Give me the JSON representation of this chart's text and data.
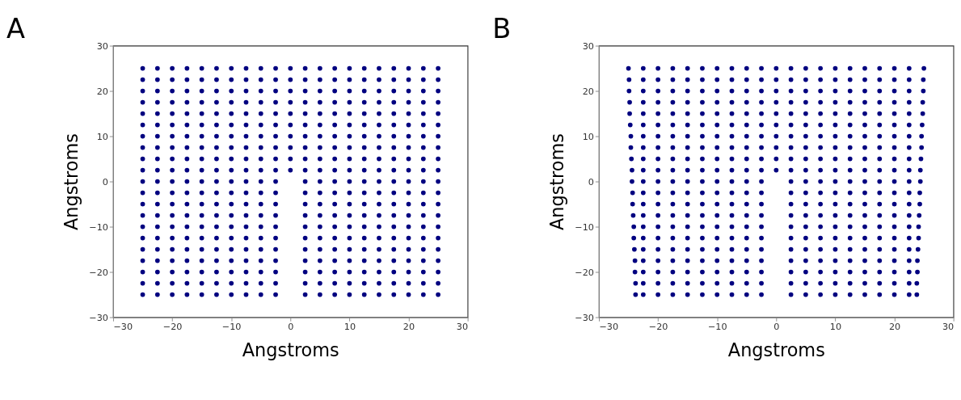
{
  "chart_data": [
    {
      "type": "scatter",
      "title": "A",
      "xlabel": "Angstroms",
      "ylabel": "Angstroms",
      "xlim": [
        -30,
        30
      ],
      "ylim": [
        -30,
        30
      ],
      "xticks": [
        -30,
        -20,
        -10,
        0,
        10,
        20,
        30
      ],
      "yticks": [
        -30,
        -20,
        -10,
        0,
        10,
        20,
        30
      ],
      "grid": false,
      "marker": "circle",
      "series": [
        {
          "color": "#000080",
          "x": [
            -25,
            -22.5,
            -20,
            -17.5,
            -15,
            -12.5,
            -10,
            -7.5,
            -5,
            -2.5,
            0,
            2.5,
            5,
            7.5,
            10,
            12.5,
            15,
            17.5,
            20,
            22.5,
            25
          ],
          "values": [
            25,
            25,
            25,
            25,
            25,
            25,
            25,
            25,
            25,
            25,
            25,
            25,
            25,
            25,
            25,
            25,
            25,
            25,
            25,
            25,
            25
          ]
        },
        {
          "color": "#000080",
          "x": [
            -25,
            -22.5,
            -20,
            -17.5,
            -15,
            -12.5,
            -10,
            -7.5,
            -5,
            -2.5,
            0,
            2.5,
            5,
            7.5,
            10,
            12.5,
            15,
            17.5,
            20,
            22.5,
            25
          ],
          "values": [
            22.5,
            22.5,
            22.5,
            22.5,
            22.5,
            22.5,
            22.5,
            22.5,
            22.5,
            22.5,
            22.5,
            22.5,
            22.5,
            22.5,
            22.5,
            22.5,
            22.5,
            22.5,
            22.5,
            22.5,
            22.5
          ]
        },
        {
          "color": "#000080",
          "x": [
            -25,
            -22.5,
            -20,
            -17.5,
            -15,
            -12.5,
            -10,
            -7.5,
            -5,
            -2.5,
            0,
            2.5,
            5,
            7.5,
            10,
            12.5,
            15,
            17.5,
            20,
            22.5,
            25
          ],
          "values": [
            20,
            20,
            20,
            20,
            20,
            20,
            20,
            20,
            20,
            20,
            20,
            20,
            20,
            20,
            20,
            20,
            20,
            20,
            20,
            20,
            20
          ]
        },
        {
          "color": "#000080",
          "x": [
            -25,
            -22.5,
            -20,
            -17.5,
            -15,
            -12.5,
            -10,
            -7.5,
            -5,
            -2.5,
            0,
            2.5,
            5,
            7.5,
            10,
            12.5,
            15,
            17.5,
            20,
            22.5,
            25
          ],
          "values": [
            17.5,
            17.5,
            17.5,
            17.5,
            17.5,
            17.5,
            17.5,
            17.5,
            17.5,
            17.5,
            17.5,
            17.5,
            17.5,
            17.5,
            17.5,
            17.5,
            17.5,
            17.5,
            17.5,
            17.5,
            17.5
          ]
        },
        {
          "color": "#000080",
          "x": [
            -25,
            -22.5,
            -20,
            -17.5,
            -15,
            -12.5,
            -10,
            -7.5,
            -5,
            -2.5,
            0,
            2.5,
            5,
            7.5,
            10,
            12.5,
            15,
            17.5,
            20,
            22.5,
            25
          ],
          "values": [
            15,
            15,
            15,
            15,
            15,
            15,
            15,
            15,
            15,
            15,
            15,
            15,
            15,
            15,
            15,
            15,
            15,
            15,
            15,
            15,
            15
          ]
        },
        {
          "color": "#000080",
          "x": [
            -25,
            -22.5,
            -20,
            -17.5,
            -15,
            -12.5,
            -10,
            -7.5,
            -5,
            -2.5,
            0,
            2.5,
            5,
            7.5,
            10,
            12.5,
            15,
            17.5,
            20,
            22.5,
            25
          ],
          "values": [
            12.5,
            12.5,
            12.5,
            12.5,
            12.5,
            12.5,
            12.5,
            12.5,
            12.5,
            12.5,
            12.5,
            12.5,
            12.5,
            12.5,
            12.5,
            12.5,
            12.5,
            12.5,
            12.5,
            12.5,
            12.5
          ]
        },
        {
          "color": "#000080",
          "x": [
            -25,
            -22.5,
            -20,
            -17.5,
            -15,
            -12.5,
            -10,
            -7.5,
            -5,
            -2.5,
            0,
            2.5,
            5,
            7.5,
            10,
            12.5,
            15,
            17.5,
            20,
            22.5,
            25
          ],
          "values": [
            10,
            10,
            10,
            10,
            10,
            10,
            10,
            10,
            10,
            10,
            10,
            10,
            10,
            10,
            10,
            10,
            10,
            10,
            10,
            10,
            10
          ]
        },
        {
          "color": "#000080",
          "x": [
            -25,
            -22.5,
            -20,
            -17.5,
            -15,
            -12.5,
            -10,
            -7.5,
            -5,
            -2.5,
            0,
            2.5,
            5,
            7.5,
            10,
            12.5,
            15,
            17.5,
            20,
            22.5,
            25
          ],
          "values": [
            7.5,
            7.5,
            7.5,
            7.5,
            7.5,
            7.5,
            7.5,
            7.5,
            7.5,
            7.5,
            7.5,
            7.5,
            7.5,
            7.5,
            7.5,
            7.5,
            7.5,
            7.5,
            7.5,
            7.5,
            7.5
          ]
        },
        {
          "color": "#000080",
          "x": [
            -25,
            -22.5,
            -20,
            -17.5,
            -15,
            -12.5,
            -10,
            -7.5,
            -5,
            -2.5,
            0,
            2.5,
            5,
            7.5,
            10,
            12.5,
            15,
            17.5,
            20,
            22.5,
            25
          ],
          "values": [
            5,
            5,
            5,
            5,
            5,
            5,
            5,
            5,
            5,
            5,
            5,
            5,
            5,
            5,
            5,
            5,
            5,
            5,
            5,
            5,
            5
          ]
        },
        {
          "color": "#000080",
          "x": [
            -25,
            -22.5,
            -20,
            -17.5,
            -15,
            -12.5,
            -10,
            -7.5,
            -5,
            -2.5,
            0,
            2.5,
            5,
            7.5,
            10,
            12.5,
            15,
            17.5,
            20,
            22.5,
            25
          ],
          "values": [
            2.5,
            2.5,
            2.5,
            2.5,
            2.5,
            2.5,
            2.5,
            2.5,
            2.5,
            2.5,
            2.5,
            2.5,
            2.5,
            2.5,
            2.5,
            2.5,
            2.5,
            2.5,
            2.5,
            2.5,
            2.5
          ]
        },
        {
          "color": "#000080",
          "x": [
            -25,
            -22.5,
            -20,
            -17.5,
            -15,
            -12.5,
            -10,
            -7.5,
            -5,
            -2.5,
            2.5,
            5,
            7.5,
            10,
            12.5,
            15,
            17.5,
            20,
            22.5,
            25
          ],
          "values": [
            0,
            0,
            0,
            0,
            0,
            0,
            0,
            0,
            0,
            0,
            0,
            0,
            0,
            0,
            0,
            0,
            0,
            0,
            0,
            0
          ]
        },
        {
          "color": "#000080",
          "x": [
            -25,
            -22.5,
            -20,
            -17.5,
            -15,
            -12.5,
            -10,
            -7.5,
            -5,
            -2.5,
            2.5,
            5,
            7.5,
            10,
            12.5,
            15,
            17.5,
            20,
            22.5,
            25
          ],
          "values": [
            -2.5,
            -2.5,
            -2.5,
            -2.5,
            -2.5,
            -2.5,
            -2.5,
            -2.5,
            -2.5,
            -2.5,
            -2.5,
            -2.5,
            -2.5,
            -2.5,
            -2.5,
            -2.5,
            -2.5,
            -2.5,
            -2.5,
            -2.5
          ]
        },
        {
          "color": "#000080",
          "x": [
            -25,
            -22.5,
            -20,
            -17.5,
            -15,
            -12.5,
            -10,
            -7.5,
            -5,
            -2.5,
            2.5,
            5,
            7.5,
            10,
            12.5,
            15,
            17.5,
            20,
            22.5,
            25
          ],
          "values": [
            -5,
            -5,
            -5,
            -5,
            -5,
            -5,
            -5,
            -5,
            -5,
            -5,
            -5,
            -5,
            -5,
            -5,
            -5,
            -5,
            -5,
            -5,
            -5,
            -5
          ]
        },
        {
          "color": "#000080",
          "x": [
            -25,
            -22.5,
            -20,
            -17.5,
            -15,
            -12.5,
            -10,
            -7.5,
            -5,
            -2.5,
            2.5,
            5,
            7.5,
            10,
            12.5,
            15,
            17.5,
            20,
            22.5,
            25
          ],
          "values": [
            -7.5,
            -7.5,
            -7.5,
            -7.5,
            -7.5,
            -7.5,
            -7.5,
            -7.5,
            -7.5,
            -7.5,
            -7.5,
            -7.5,
            -7.5,
            -7.5,
            -7.5,
            -7.5,
            -7.5,
            -7.5,
            -7.5,
            -7.5
          ]
        },
        {
          "color": "#000080",
          "x": [
            -25,
            -22.5,
            -20,
            -17.5,
            -15,
            -12.5,
            -10,
            -7.5,
            -5,
            -2.5,
            2.5,
            5,
            7.5,
            10,
            12.5,
            15,
            17.5,
            20,
            22.5,
            25
          ],
          "values": [
            -10,
            -10,
            -10,
            -10,
            -10,
            -10,
            -10,
            -10,
            -10,
            -10,
            -10,
            -10,
            -10,
            -10,
            -10,
            -10,
            -10,
            -10,
            -10,
            -10
          ]
        },
        {
          "color": "#000080",
          "x": [
            -25,
            -22.5,
            -20,
            -17.5,
            -15,
            -12.5,
            -10,
            -7.5,
            -5,
            -2.5,
            2.5,
            5,
            7.5,
            10,
            12.5,
            15,
            17.5,
            20,
            22.5,
            25
          ],
          "values": [
            -12.5,
            -12.5,
            -12.5,
            -12.5,
            -12.5,
            -12.5,
            -12.5,
            -12.5,
            -12.5,
            -12.5,
            -12.5,
            -12.5,
            -12.5,
            -12.5,
            -12.5,
            -12.5,
            -12.5,
            -12.5,
            -12.5,
            -12.5
          ]
        },
        {
          "color": "#000080",
          "x": [
            -25,
            -22.5,
            -20,
            -17.5,
            -15,
            -12.5,
            -10,
            -7.5,
            -5,
            -2.5,
            2.5,
            5,
            7.5,
            10,
            12.5,
            15,
            17.5,
            20,
            22.5,
            25
          ],
          "values": [
            -15,
            -15,
            -15,
            -15,
            -15,
            -15,
            -15,
            -15,
            -15,
            -15,
            -15,
            -15,
            -15,
            -15,
            -15,
            -15,
            -15,
            -15,
            -15,
            -15
          ]
        },
        {
          "color": "#000080",
          "x": [
            -25,
            -22.5,
            -20,
            -17.5,
            -15,
            -12.5,
            -10,
            -7.5,
            -5,
            -2.5,
            2.5,
            5,
            7.5,
            10,
            12.5,
            15,
            17.5,
            20,
            22.5,
            25
          ],
          "values": [
            -17.5,
            -17.5,
            -17.5,
            -17.5,
            -17.5,
            -17.5,
            -17.5,
            -17.5,
            -17.5,
            -17.5,
            -17.5,
            -17.5,
            -17.5,
            -17.5,
            -17.5,
            -17.5,
            -17.5,
            -17.5,
            -17.5,
            -17.5
          ]
        },
        {
          "color": "#000080",
          "x": [
            -25,
            -22.5,
            -20,
            -17.5,
            -15,
            -12.5,
            -10,
            -7.5,
            -5,
            -2.5,
            2.5,
            5,
            7.5,
            10,
            12.5,
            15,
            17.5,
            20,
            22.5,
            25
          ],
          "values": [
            -20,
            -20,
            -20,
            -20,
            -20,
            -20,
            -20,
            -20,
            -20,
            -20,
            -20,
            -20,
            -20,
            -20,
            -20,
            -20,
            -20,
            -20,
            -20,
            -20
          ]
        },
        {
          "color": "#000080",
          "x": [
            -25,
            -22.5,
            -20,
            -17.5,
            -15,
            -12.5,
            -10,
            -7.5,
            -5,
            -2.5,
            2.5,
            5,
            7.5,
            10,
            12.5,
            15,
            17.5,
            20,
            22.5,
            25
          ],
          "values": [
            -22.5,
            -22.5,
            -22.5,
            -22.5,
            -22.5,
            -22.5,
            -22.5,
            -22.5,
            -22.5,
            -22.5,
            -22.5,
            -22.5,
            -22.5,
            -22.5,
            -22.5,
            -22.5,
            -22.5,
            -22.5,
            -22.5,
            -22.5
          ]
        },
        {
          "color": "#000080",
          "x": [
            -25,
            -22.5,
            -20,
            -17.5,
            -15,
            -12.5,
            -10,
            -7.5,
            -5,
            -2.5,
            2.5,
            5,
            7.5,
            10,
            12.5,
            15,
            17.5,
            20,
            22.5,
            25
          ],
          "values": [
            -25,
            -25,
            -25,
            -25,
            -25,
            -25,
            -25,
            -25,
            -25,
            -25,
            -25,
            -25,
            -25,
            -25,
            -25,
            -25,
            -25,
            -25,
            -25,
            -25
          ]
        }
      ]
    },
    {
      "type": "scatter",
      "title": "B",
      "xlabel": "Angstroms",
      "ylabel": "Angstroms",
      "xlim": [
        -30,
        30
      ],
      "ylim": [
        -30,
        30
      ],
      "xticks": [
        -30,
        -20,
        -10,
        0,
        10,
        20,
        30
      ],
      "yticks": [
        -30,
        -20,
        -10,
        0,
        10,
        20,
        30
      ],
      "grid": false,
      "marker": "circle",
      "series": [
        {
          "color": "#000080",
          "x": [
            -25,
            -22.5,
            -20,
            -17.5,
            -15,
            -12.5,
            -10,
            -7.5,
            -5,
            -2.5,
            0,
            2.5,
            5,
            7.5,
            10,
            12.5,
            15,
            17.5,
            20,
            22.5,
            25
          ],
          "values": [
            25,
            25,
            25,
            25,
            25,
            25,
            25,
            25,
            25,
            25,
            25,
            25,
            25,
            25,
            25,
            25,
            25,
            25,
            25,
            25,
            25
          ]
        },
        {
          "color": "#000080",
          "x": [
            -24.9,
            -22.5,
            -20,
            -17.5,
            -15,
            -12.5,
            -10,
            -7.5,
            -5,
            -2.5,
            0,
            2.5,
            5,
            7.5,
            10,
            12.5,
            15,
            17.5,
            20,
            22.5,
            24.9
          ],
          "values": [
            22.5,
            22.5,
            22.5,
            22.5,
            22.5,
            22.5,
            22.5,
            22.5,
            22.5,
            22.5,
            22.5,
            22.5,
            22.5,
            22.5,
            22.5,
            22.5,
            22.5,
            22.5,
            22.5,
            22.5,
            22.5
          ]
        },
        {
          "color": "#000080",
          "x": [
            -24.9,
            -22.5,
            -20,
            -17.5,
            -15,
            -12.5,
            -10,
            -7.5,
            -5,
            -2.5,
            0,
            2.5,
            5,
            7.5,
            10,
            12.5,
            15,
            17.5,
            20,
            22.5,
            24.9
          ],
          "values": [
            20,
            20,
            20,
            20,
            20,
            20,
            20,
            20,
            20,
            20,
            20,
            20,
            20,
            20,
            20,
            20,
            20,
            20,
            20,
            20,
            20
          ]
        },
        {
          "color": "#000080",
          "x": [
            -24.8,
            -22.5,
            -20,
            -17.5,
            -15,
            -12.5,
            -10,
            -7.5,
            -5,
            -2.5,
            0,
            2.5,
            5,
            7.5,
            10,
            12.5,
            15,
            17.5,
            20,
            22.5,
            24.8
          ],
          "values": [
            17.5,
            17.5,
            17.5,
            17.5,
            17.5,
            17.5,
            17.5,
            17.5,
            17.5,
            17.5,
            17.5,
            17.5,
            17.5,
            17.5,
            17.5,
            17.5,
            17.5,
            17.5,
            17.5,
            17.5,
            17.5
          ]
        },
        {
          "color": "#000080",
          "x": [
            -24.8,
            -22.5,
            -20,
            -17.5,
            -15,
            -12.5,
            -10,
            -7.5,
            -5,
            -2.5,
            0,
            2.5,
            5,
            7.5,
            10,
            12.5,
            15,
            17.5,
            20,
            22.5,
            24.8
          ],
          "values": [
            15,
            15,
            15,
            15,
            15,
            15,
            15,
            15,
            15,
            15,
            15,
            15,
            15,
            15,
            15,
            15,
            15,
            15,
            15,
            15,
            15
          ]
        },
        {
          "color": "#000080",
          "x": [
            -24.7,
            -22.5,
            -20,
            -17.5,
            -15,
            -12.5,
            -10,
            -7.5,
            -5,
            -2.5,
            0,
            2.5,
            5,
            7.5,
            10,
            12.5,
            15,
            17.5,
            20,
            22.5,
            24.7
          ],
          "values": [
            12.5,
            12.5,
            12.5,
            12.5,
            12.5,
            12.5,
            12.5,
            12.5,
            12.5,
            12.5,
            12.5,
            12.5,
            12.5,
            12.5,
            12.5,
            12.5,
            12.5,
            12.5,
            12.5,
            12.5,
            12.5
          ]
        },
        {
          "color": "#000080",
          "x": [
            -24.6,
            -22.5,
            -20,
            -17.5,
            -15,
            -12.5,
            -10,
            -7.5,
            -5,
            -2.5,
            0,
            2.5,
            5,
            7.5,
            10,
            12.5,
            15,
            17.5,
            20,
            22.5,
            24.6
          ],
          "values": [
            10,
            10,
            10,
            10,
            10,
            10,
            10,
            10,
            10,
            10,
            10,
            10,
            10,
            10,
            10,
            10,
            10,
            10,
            10,
            10,
            10
          ]
        },
        {
          "color": "#000080",
          "x": [
            -24.6,
            -22.5,
            -20,
            -17.5,
            -15,
            -12.5,
            -10,
            -7.5,
            -5,
            -2.5,
            0,
            2.5,
            5,
            7.5,
            10,
            12.5,
            15,
            17.5,
            20,
            22.5,
            24.6
          ],
          "values": [
            7.5,
            7.5,
            7.5,
            7.5,
            7.5,
            7.5,
            7.5,
            7.5,
            7.5,
            7.5,
            7.5,
            7.5,
            7.5,
            7.5,
            7.5,
            7.5,
            7.5,
            7.5,
            7.5,
            7.5,
            7.5
          ]
        },
        {
          "color": "#000080",
          "x": [
            -24.5,
            -22.5,
            -20,
            -17.5,
            -15,
            -12.5,
            -10,
            -7.5,
            -5,
            -2.5,
            0,
            2.5,
            5,
            7.5,
            10,
            12.5,
            15,
            17.5,
            20,
            22.5,
            24.5
          ],
          "values": [
            5,
            5,
            5,
            5,
            5,
            5,
            5,
            5,
            5,
            5,
            5,
            5,
            5,
            5,
            5,
            5,
            5,
            5,
            5,
            5,
            5
          ]
        },
        {
          "color": "#000080",
          "x": [
            -24.4,
            -22.5,
            -20,
            -17.5,
            -15,
            -12.5,
            -10,
            -7.5,
            -5,
            -2.5,
            0,
            2.5,
            5,
            7.5,
            10,
            12.5,
            15,
            17.5,
            20,
            22.5,
            24.4
          ],
          "values": [
            2.5,
            2.5,
            2.5,
            2.5,
            2.5,
            2.5,
            2.5,
            2.5,
            2.5,
            2.5,
            2.5,
            2.5,
            2.5,
            2.5,
            2.5,
            2.5,
            2.5,
            2.5,
            2.5,
            2.5,
            2.5
          ]
        },
        {
          "color": "#000080",
          "x": [
            -24.4,
            -22.5,
            -20,
            -17.5,
            -15,
            -12.5,
            -10,
            -7.5,
            -5,
            -2.5,
            2.5,
            5,
            7.5,
            10,
            12.5,
            15,
            17.5,
            20,
            22.5,
            24.4
          ],
          "values": [
            0,
            0,
            0,
            0,
            0,
            0,
            0,
            0,
            0,
            0,
            0,
            0,
            0,
            0,
            0,
            0,
            0,
            0,
            0,
            0
          ]
        },
        {
          "color": "#000080",
          "x": [
            -24.3,
            -22.5,
            -20,
            -17.5,
            -15,
            -12.5,
            -10,
            -7.5,
            -5,
            -2.5,
            2.5,
            5,
            7.5,
            10,
            12.5,
            15,
            17.5,
            20,
            22.5,
            24.3
          ],
          "values": [
            -2.5,
            -2.5,
            -2.5,
            -2.5,
            -2.5,
            -2.5,
            -2.5,
            -2.5,
            -2.5,
            -2.5,
            -2.5,
            -2.5,
            -2.5,
            -2.5,
            -2.5,
            -2.5,
            -2.5,
            -2.5,
            -2.5,
            -2.5
          ]
        },
        {
          "color": "#000080",
          "x": [
            -24.3,
            -22.5,
            -20,
            -17.5,
            -15,
            -12.5,
            -10,
            -7.5,
            -5,
            -2.5,
            2.5,
            5,
            7.5,
            10,
            12.5,
            15,
            17.5,
            20,
            22.5,
            24.3
          ],
          "values": [
            -5,
            -5,
            -5,
            -5,
            -5,
            -5,
            -5,
            -5,
            -5,
            -5,
            -5,
            -5,
            -5,
            -5,
            -5,
            -5,
            -5,
            -5,
            -5,
            -5
          ]
        },
        {
          "color": "#000080",
          "x": [
            -24.2,
            -22.5,
            -20,
            -17.5,
            -15,
            -12.5,
            -10,
            -7.5,
            -5,
            -2.5,
            2.5,
            5,
            7.5,
            10,
            12.5,
            15,
            17.5,
            20,
            22.5,
            24.2
          ],
          "values": [
            -7.5,
            -7.5,
            -7.5,
            -7.5,
            -7.5,
            -7.5,
            -7.5,
            -7.5,
            -7.5,
            -7.5,
            -7.5,
            -7.5,
            -7.5,
            -7.5,
            -7.5,
            -7.5,
            -7.5,
            -7.5,
            -7.5,
            -7.5
          ]
        },
        {
          "color": "#000080",
          "x": [
            -24.1,
            -22.5,
            -20,
            -17.5,
            -15,
            -12.5,
            -10,
            -7.5,
            -5,
            -2.5,
            2.5,
            5,
            7.5,
            10,
            12.5,
            15,
            17.5,
            20,
            22.5,
            24.1
          ],
          "values": [
            -10,
            -10,
            -10,
            -10,
            -10,
            -10,
            -10,
            -10,
            -10,
            -10,
            -10,
            -10,
            -10,
            -10,
            -10,
            -10,
            -10,
            -10,
            -10,
            -10
          ]
        },
        {
          "color": "#000080",
          "x": [
            -24.1,
            -22.5,
            -20,
            -17.5,
            -15,
            -12.5,
            -10,
            -7.5,
            -5,
            -2.5,
            2.5,
            5,
            7.5,
            10,
            12.5,
            15,
            17.5,
            20,
            22.5,
            24.1
          ],
          "values": [
            -12.5,
            -12.5,
            -12.5,
            -12.5,
            -12.5,
            -12.5,
            -12.5,
            -12.5,
            -12.5,
            -12.5,
            -12.5,
            -12.5,
            -12.5,
            -12.5,
            -12.5,
            -12.5,
            -12.5,
            -12.5,
            -12.5,
            -12.5
          ]
        },
        {
          "color": "#000080",
          "x": [
            -24,
            -22.5,
            -20,
            -17.5,
            -15,
            -12.5,
            -10,
            -7.5,
            -5,
            -2.5,
            2.5,
            5,
            7.5,
            10,
            12.5,
            15,
            17.5,
            20,
            22.5,
            24
          ],
          "values": [
            -15,
            -15,
            -15,
            -15,
            -15,
            -15,
            -15,
            -15,
            -15,
            -15,
            -15,
            -15,
            -15,
            -15,
            -15,
            -15,
            -15,
            -15,
            -15,
            -15
          ]
        },
        {
          "color": "#000080",
          "x": [
            -23.9,
            -22.5,
            -20,
            -17.5,
            -15,
            -12.5,
            -10,
            -7.5,
            -5,
            -2.5,
            2.5,
            5,
            7.5,
            10,
            12.5,
            15,
            17.5,
            20,
            22.5,
            23.9
          ],
          "values": [
            -17.5,
            -17.5,
            -17.5,
            -17.5,
            -17.5,
            -17.5,
            -17.5,
            -17.5,
            -17.5,
            -17.5,
            -17.5,
            -17.5,
            -17.5,
            -17.5,
            -17.5,
            -17.5,
            -17.5,
            -17.5,
            -17.5,
            -17.5
          ]
        },
        {
          "color": "#000080",
          "x": [
            -23.9,
            -22.5,
            -20,
            -17.5,
            -15,
            -12.5,
            -10,
            -7.5,
            -5,
            -2.5,
            2.5,
            5,
            7.5,
            10,
            12.5,
            15,
            17.5,
            20,
            22.5,
            23.9
          ],
          "values": [
            -20,
            -20,
            -20,
            -20,
            -20,
            -20,
            -20,
            -20,
            -20,
            -20,
            -20,
            -20,
            -20,
            -20,
            -20,
            -20,
            -20,
            -20,
            -20,
            -20
          ]
        },
        {
          "color": "#000080",
          "x": [
            -23.8,
            -22.5,
            -20,
            -17.5,
            -15,
            -12.5,
            -10,
            -7.5,
            -5,
            -2.5,
            2.5,
            5,
            7.5,
            10,
            12.5,
            15,
            17.5,
            20,
            22.5,
            23.8
          ],
          "values": [
            -22.5,
            -22.5,
            -22.5,
            -22.5,
            -22.5,
            -22.5,
            -22.5,
            -22.5,
            -22.5,
            -22.5,
            -22.5,
            -22.5,
            -22.5,
            -22.5,
            -22.5,
            -22.5,
            -22.5,
            -22.5,
            -22.5,
            -22.5
          ]
        },
        {
          "color": "#000080",
          "x": [
            -23.8,
            -22.5,
            -20,
            -17.5,
            -15,
            -12.5,
            -10,
            -7.5,
            -5,
            -2.5,
            2.5,
            5,
            7.5,
            10,
            12.5,
            15,
            17.5,
            20,
            22.5,
            23.8
          ],
          "values": [
            -25,
            -25,
            -25,
            -25,
            -25,
            -25,
            -25,
            -25,
            -25,
            -25,
            -25,
            -25,
            -25,
            -25,
            -25,
            -25,
            -25,
            -25,
            -25,
            -25
          ]
        }
      ]
    }
  ]
}
